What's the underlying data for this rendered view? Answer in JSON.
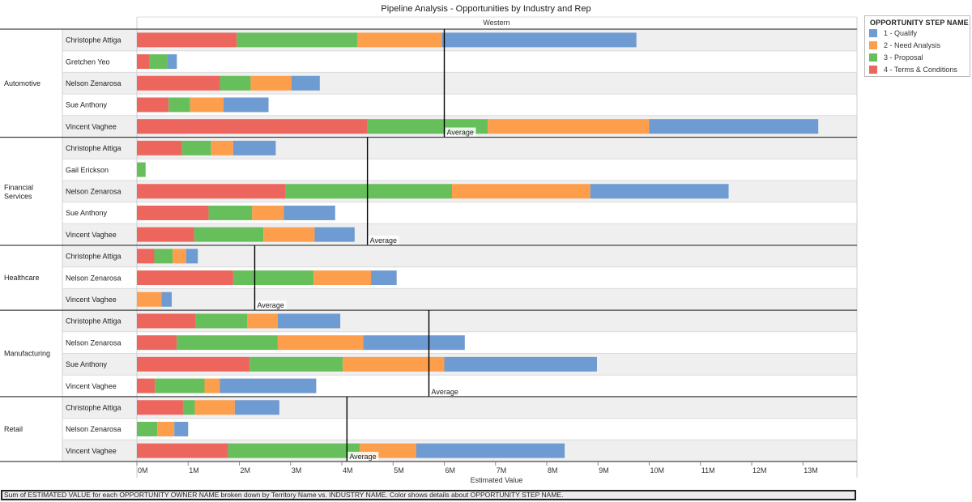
{
  "chart_data": {
    "type": "bar",
    "orientation": "horizontal",
    "stacked": true,
    "title": "Pipeline Analysis - Opportunities by Industry and Rep",
    "column_header": "Western",
    "xlabel": "Estimated Value",
    "xlim": [
      0,
      14.2
    ],
    "x_unit": "M",
    "x_ticks": [
      "0M",
      "1M",
      "2M",
      "3M",
      "4M",
      "5M",
      "6M",
      "7M",
      "8M",
      "9M",
      "10M",
      "11M",
      "12M",
      "13M"
    ],
    "reference_line_label": "Average",
    "legend": {
      "title": "OPPORTUNITY STEP NAME",
      "position": "top-right",
      "items": [
        {
          "label": "1 - Qualify",
          "color": "#6e9bd1"
        },
        {
          "label": "2 - Need Analysis",
          "color": "#fd9e4c"
        },
        {
          "label": "3 - Proposal",
          "color": "#67bf5c"
        },
        {
          "label": "4 - Terms & Conditions",
          "color": "#ed665d"
        }
      ]
    },
    "series_order_left_to_right": [
      "4 - Terms & Conditions",
      "3 - Proposal",
      "2 - Need Analysis",
      "1 - Qualify"
    ],
    "groups": [
      {
        "industry": "Automotive",
        "average": 6.0,
        "rows": [
          {
            "rep": "Christophe Attiga",
            "values": [
              1.95,
              2.35,
              1.65,
              3.8
            ]
          },
          {
            "rep": "Gretchen Yeo",
            "values": [
              0.25,
              0.35,
              0.0,
              0.18
            ]
          },
          {
            "rep": "Nelson Zenarosa",
            "values": [
              1.62,
              0.6,
              0.8,
              0.55
            ]
          },
          {
            "rep": "Sue Anthony",
            "values": [
              0.62,
              0.42,
              0.65,
              0.88
            ]
          },
          {
            "rep": "Vincent Vaghee",
            "values": [
              4.5,
              2.35,
              3.15,
              3.3
            ]
          }
        ]
      },
      {
        "industry": "Financial Services",
        "average": 4.5,
        "rows": [
          {
            "rep": "Christophe Attiga",
            "values": [
              0.88,
              0.57,
              0.43,
              0.83
            ]
          },
          {
            "rep": "Gail Erickson",
            "values": [
              0.0,
              0.17,
              0.0,
              0.0
            ]
          },
          {
            "rep": "Nelson Zenarosa",
            "values": [
              2.9,
              3.25,
              2.7,
              2.7
            ]
          },
          {
            "rep": "Sue Anthony",
            "values": [
              1.4,
              0.85,
              0.62,
              1.0
            ]
          },
          {
            "rep": "Vincent Vaghee",
            "values": [
              1.12,
              1.35,
              1.0,
              0.78
            ]
          }
        ]
      },
      {
        "industry": "Healthcare",
        "average": 2.3,
        "rows": [
          {
            "rep": "Christophe Attiga",
            "values": [
              0.34,
              0.36,
              0.26,
              0.23
            ]
          },
          {
            "rep": "Nelson Zenarosa",
            "values": [
              1.88,
              1.57,
              1.12,
              0.5
            ]
          },
          {
            "rep": "Vincent Vaghee",
            "values": [
              0.0,
              0.0,
              0.48,
              0.2
            ]
          }
        ]
      },
      {
        "industry": "Manufacturing",
        "average": 5.7,
        "rows": [
          {
            "rep": "Christophe Attiga",
            "values": [
              1.15,
              1.0,
              0.6,
              1.22
            ]
          },
          {
            "rep": "Nelson Zenarosa",
            "values": [
              0.78,
              1.97,
              1.67,
              1.98
            ]
          },
          {
            "rep": "Sue Anthony",
            "values": [
              2.2,
              1.82,
              1.98,
              2.98
            ]
          },
          {
            "rep": "Vincent Vaghee",
            "values": [
              0.35,
              0.97,
              0.3,
              1.88
            ]
          }
        ]
      },
      {
        "industry": "Retail",
        "average": 4.1,
        "rows": [
          {
            "rep": "Christophe Attiga",
            "values": [
              0.9,
              0.23,
              0.78,
              0.87
            ]
          },
          {
            "rep": "Nelson Zenarosa",
            "values": [
              0.0,
              0.4,
              0.33,
              0.27
            ]
          },
          {
            "rep": "Vincent Vaghee",
            "values": [
              1.78,
              2.57,
              1.1,
              2.9
            ]
          }
        ]
      }
    ]
  },
  "caption": "Sum of ESTIMATED VALUE for each OPPORTUNITY OWNER NAME broken down by Territory Name vs. INDUSTRY NAME.  Color shows details about OPPORTUNITY STEP NAME."
}
